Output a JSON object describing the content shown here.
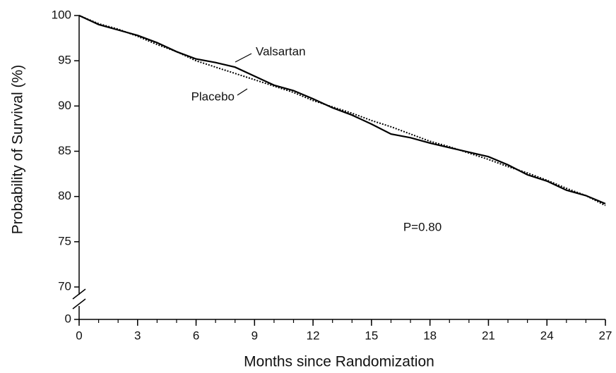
{
  "chart_data": {
    "type": "line",
    "xlabel": "Months since Randomization",
    "ylabel": "Probability of Survival (%)",
    "x": [
      0,
      1,
      2,
      3,
      4,
      5,
      6,
      7,
      8,
      9,
      10,
      11,
      12,
      13,
      14,
      15,
      16,
      17,
      18,
      19,
      20,
      21,
      22,
      23,
      24,
      25,
      26,
      27
    ],
    "series": [
      {
        "name": "Valsartan",
        "color": "#000000",
        "dash": "solid",
        "values": [
          100,
          99.0,
          98.4,
          97.8,
          97.0,
          96.0,
          95.2,
          94.8,
          94.3,
          93.3,
          92.3,
          91.7,
          90.8,
          89.8,
          89.0,
          88.0,
          86.9,
          86.5,
          85.9,
          85.4,
          84.9,
          84.4,
          83.5,
          82.4,
          81.7,
          80.7,
          80.1,
          79.2
        ]
      },
      {
        "name": "Placebo",
        "color": "#000000",
        "dash": "dotted",
        "values": [
          100,
          99.1,
          98.5,
          97.7,
          96.8,
          96.0,
          95.0,
          94.3,
          93.6,
          92.9,
          92.2,
          91.5,
          90.6,
          89.9,
          89.2,
          88.4,
          87.7,
          86.9,
          86.1,
          85.5,
          84.8,
          84.1,
          83.3,
          82.6,
          81.8,
          80.9,
          80.1,
          79.0
        ]
      }
    ],
    "annotation": "P=0.80",
    "xlim": [
      0,
      27
    ],
    "xticks": [
      0,
      3,
      6,
      9,
      12,
      15,
      18,
      21,
      24,
      27
    ],
    "ylim": [
      0,
      100
    ],
    "yticks": [
      0,
      70,
      75,
      80,
      85,
      90,
      95,
      100
    ],
    "axis_break": true
  }
}
